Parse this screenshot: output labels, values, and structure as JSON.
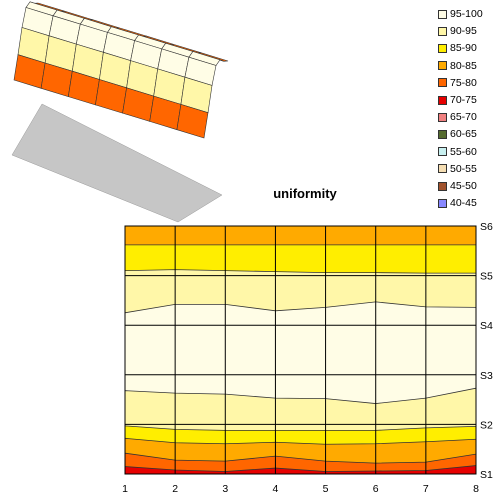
{
  "chart_data": {
    "type": "surface-contour",
    "title": "uniformity",
    "x_categories": [
      "1",
      "2",
      "3",
      "4",
      "5",
      "6",
      "7",
      "8"
    ],
    "y_categories": [
      "S1",
      "S2",
      "S3",
      "S4",
      "S5",
      "S6"
    ],
    "ylim": [
      0,
      5
    ],
    "grid": true,
    "legend_position": "top-right",
    "bands": [
      {
        "label": "95-100",
        "color": "#fffde6"
      },
      {
        "label": "90-95",
        "color": "#fff7a8"
      },
      {
        "label": "85-90",
        "color": "#ffee00"
      },
      {
        "label": "80-85",
        "color": "#ffaa00"
      },
      {
        "label": "75-80",
        "color": "#ff6600"
      },
      {
        "label": "70-75",
        "color": "#e60000"
      },
      {
        "label": "65-70",
        "color": "#f08080"
      },
      {
        "label": "60-65",
        "color": "#556b2f"
      },
      {
        "label": "55-60",
        "color": "#c8f0f0"
      },
      {
        "label": "50-55",
        "color": "#f5deb3"
      },
      {
        "label": "45-50",
        "color": "#a0522d"
      },
      {
        "label": "40-45",
        "color": "#8888ff"
      }
    ],
    "contour_boundaries": [
      {
        "upper": "70-75",
        "lower": "75-80",
        "y": [
          0.15,
          0.08,
          0.05,
          0.12,
          0.05,
          0.06,
          0.07,
          0.17
        ]
      },
      {
        "upper": "75-80",
        "lower": "80-85",
        "y": [
          0.42,
          0.28,
          0.26,
          0.36,
          0.26,
          0.22,
          0.24,
          0.4
        ]
      },
      {
        "upper": "80-85",
        "lower": "85-90",
        "y": [
          0.72,
          0.63,
          0.61,
          0.64,
          0.6,
          0.61,
          0.65,
          0.7
        ]
      },
      {
        "upper": "85-90",
        "lower": "90-95",
        "y": [
          0.97,
          0.9,
          0.88,
          0.88,
          0.88,
          0.88,
          0.93,
          0.96
        ]
      },
      {
        "upper": "90-95",
        "lower": "95-100",
        "y": [
          1.68,
          1.63,
          1.61,
          1.53,
          1.52,
          1.42,
          1.53,
          1.73
        ]
      },
      {
        "upper": "95-100",
        "lower": "90-95",
        "y": [
          3.25,
          3.42,
          3.42,
          3.29,
          3.36,
          3.47,
          3.37,
          3.36
        ]
      },
      {
        "upper": "90-95",
        "lower": "85-90",
        "y": [
          4.1,
          4.12,
          4.1,
          4.08,
          4.06,
          4.06,
          4.05,
          4.05
        ]
      },
      {
        "upper": "85-90",
        "lower": "80-85",
        "y": [
          4.62,
          4.62,
          4.62,
          4.62,
          4.62,
          4.62,
          4.62,
          4.62
        ]
      }
    ],
    "band_order_bottom_to_top": [
      "70-75",
      "75-80",
      "80-85",
      "85-90",
      "90-95",
      "95-100",
      "90-95",
      "85-90",
      "80-85"
    ]
  }
}
